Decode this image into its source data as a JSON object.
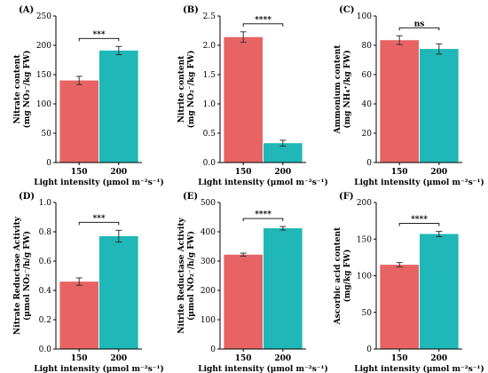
{
  "colors": {
    "bar_150": "#E86464",
    "bar_200": "#1FB7B7"
  },
  "chart_data": [
    {
      "panel": "(A)",
      "type": "bar",
      "categories": [
        "150",
        "200"
      ],
      "values": [
        140,
        191
      ],
      "errors": [
        7,
        7
      ],
      "xlabel": "Light intensity (μmol m⁻²s⁻¹)",
      "ylabel_lines": [
        "Nitrate content",
        "(mg NO₃⁻/kg FW)"
      ],
      "ylim": [
        0,
        250
      ],
      "yticks": [
        "0",
        "50",
        "100",
        "150",
        "200",
        "250"
      ],
      "significance": "***"
    },
    {
      "panel": "(B)",
      "type": "bar",
      "categories": [
        "150",
        "200"
      ],
      "values": [
        2.14,
        0.33
      ],
      "errors": [
        0.09,
        0.05
      ],
      "xlabel": "Light intensity (μmol m⁻²s⁻¹)",
      "ylabel_lines": [
        "Nitrite content",
        "(mg NO₂⁻/kg FW)"
      ],
      "ylim": [
        0,
        2.5
      ],
      "yticks": [
        "0.0",
        "0.5",
        "1.0",
        "1.5",
        "2.0",
        "2.5"
      ],
      "significance": "****"
    },
    {
      "panel": "(C)",
      "type": "bar",
      "categories": [
        "150",
        "200"
      ],
      "values": [
        83.5,
        77.5
      ],
      "errors": [
        3,
        3.5
      ],
      "xlabel": "Light intensity (μmol m⁻²s⁻¹)",
      "ylabel_lines": [
        "Ammonium content",
        "(mg NH₄⁺/kg FW)"
      ],
      "ylim": [
        0,
        100
      ],
      "yticks": [
        "0",
        "20",
        "40",
        "60",
        "80",
        "100"
      ],
      "significance": "ns"
    },
    {
      "panel": "(D)",
      "type": "bar",
      "categories": [
        "150",
        "200"
      ],
      "values": [
        0.46,
        0.77
      ],
      "errors": [
        0.025,
        0.04
      ],
      "xlabel": "Light intensity (μmol m⁻²s⁻¹)",
      "ylabel_lines": [
        "Nitrate Reductase Activity",
        "(μmol NO₂⁻/h/g FW)"
      ],
      "ylim": [
        0,
        1.0
      ],
      "yticks": [
        "0.0",
        "0.2",
        "0.4",
        "0.6",
        "0.8",
        "1.0"
      ],
      "significance": "***"
    },
    {
      "panel": "(E)",
      "type": "bar",
      "categories": [
        "150",
        "200"
      ],
      "values": [
        322,
        412
      ],
      "errors": [
        5,
        6
      ],
      "xlabel": "Light intensity (μmol m⁻²s⁻¹)",
      "ylabel_lines": [
        "Nitrite Reductase Activity",
        "(μmol NO₂⁻/h/g FW)"
      ],
      "ylim": [
        0,
        500
      ],
      "yticks": [
        "0",
        "100",
        "200",
        "300",
        "400",
        "500"
      ],
      "significance": "****"
    },
    {
      "panel": "(F)",
      "type": "bar",
      "categories": [
        "150",
        "200"
      ],
      "values": [
        115,
        157
      ],
      "errors": [
        3,
        3.5
      ],
      "xlabel": "Light intensity (μmol m⁻²s⁻¹)",
      "ylabel_lines": [
        "Ascorbic acid content",
        "(mg/kg FW)"
      ],
      "ylim": [
        0,
        200
      ],
      "yticks": [
        "0",
        "50",
        "100",
        "150",
        "200"
      ],
      "significance": "****"
    }
  ]
}
